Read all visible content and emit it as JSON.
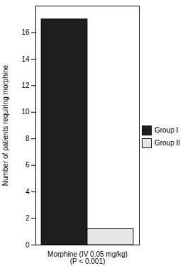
{
  "chart_data": {
    "type": "bar",
    "y_label": "Number of patients requiring morphine",
    "categories": [
      "Morphine (IV 0.05 mg/kg)\n(P < 0.001)"
    ],
    "series": [
      {
        "name": "Group I",
        "color": "#1e1e1e",
        "values": [
          17
        ]
      },
      {
        "name": "Group II",
        "color": "#e6e6e6",
        "values": [
          1.2
        ]
      }
    ],
    "ylim": [
      0,
      18
    ],
    "yticks": [
      0,
      2,
      4,
      6,
      8,
      10,
      12,
      14,
      16
    ],
    "grid": false,
    "legend": "right"
  }
}
